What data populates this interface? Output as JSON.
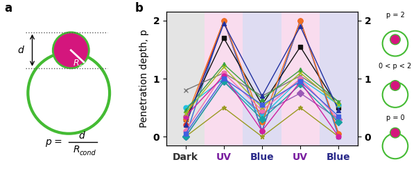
{
  "panel_a": {
    "label": "a",
    "distance": "d",
    "radius": {
      "symbol": "R",
      "subscript": "cond"
    },
    "formula": {
      "lhs": "p =",
      "numerator": "d",
      "denominator": {
        "symbol": "R",
        "subscript": "cond"
      }
    }
  },
  "chart_data": {
    "type": "line",
    "label": "b",
    "y_label": "Penetration depth, p",
    "categories": [
      "Dark",
      "UV",
      "Blue",
      "UV",
      "Blue"
    ],
    "ylim": [
      -0.15,
      2.15
    ],
    "yticks": [
      0,
      1,
      2
    ],
    "y2lim": [
      -0.15,
      2.15
    ],
    "y2ticks": [
      0,
      1,
      2
    ],
    "series": [
      {
        "color": "#e8352b",
        "marker": "circle",
        "values": [
          0.2,
          2.0,
          0.1,
          2.0,
          0.05
        ]
      },
      {
        "color": "#2f6fd6",
        "marker": "triangle",
        "values": [
          0.0,
          2.0,
          0.1,
          2.0,
          0.0
        ]
      },
      {
        "color": "#111111",
        "marker": "square",
        "values": [
          0.3,
          1.7,
          0.55,
          1.55,
          0.5
        ]
      },
      {
        "color": "#777777",
        "marker": "x",
        "values": [
          0.8,
          1.1,
          0.7,
          1.05,
          0.6
        ]
      },
      {
        "color": "#9a9a20",
        "marker": "star",
        "values": [
          0.0,
          0.5,
          0.0,
          0.5,
          0.0
        ]
      },
      {
        "color": "#9b59b6",
        "marker": "diamond",
        "values": [
          0.0,
          0.95,
          0.4,
          0.75,
          0.3
        ]
      },
      {
        "color": "#20c0e0",
        "marker": "circle",
        "values": [
          0.5,
          1.0,
          0.35,
          1.0,
          0.55
        ]
      },
      {
        "color": "#f07020",
        "marker": "circle",
        "values": [
          0.3,
          2.0,
          0.25,
          2.0,
          0.05
        ]
      },
      {
        "color": "#3aa040",
        "marker": "triangle",
        "values": [
          0.45,
          1.25,
          0.65,
          1.15,
          0.6
        ]
      },
      {
        "color": "#f070b0",
        "marker": "circle",
        "values": [
          0.1,
          1.1,
          0.45,
          1.0,
          0.3
        ]
      },
      {
        "color": "#17a2a2",
        "marker": "diamond",
        "values": [
          0.0,
          0.95,
          0.3,
          0.9,
          0.25
        ]
      },
      {
        "color": "#2030a0",
        "marker": "triangle",
        "values": [
          0.2,
          1.95,
          0.7,
          1.9,
          0.45
        ]
      },
      {
        "color": "#d020a0",
        "marker": "circle",
        "values": [
          0.35,
          1.05,
          0.1,
          0.95,
          0.0
        ]
      },
      {
        "color": "#a0c020",
        "marker": "x",
        "values": [
          0.4,
          1.2,
          0.5,
          1.1,
          0.55
        ]
      },
      {
        "color": "#4060e0",
        "marker": "square",
        "values": [
          0.05,
          1.0,
          0.55,
          0.95,
          0.35
        ]
      }
    ]
  },
  "side_diagrams": [
    {
      "label": "p = 2"
    },
    {
      "label": "0 < p < 2"
    },
    {
      "label": "p = 0"
    }
  ]
}
